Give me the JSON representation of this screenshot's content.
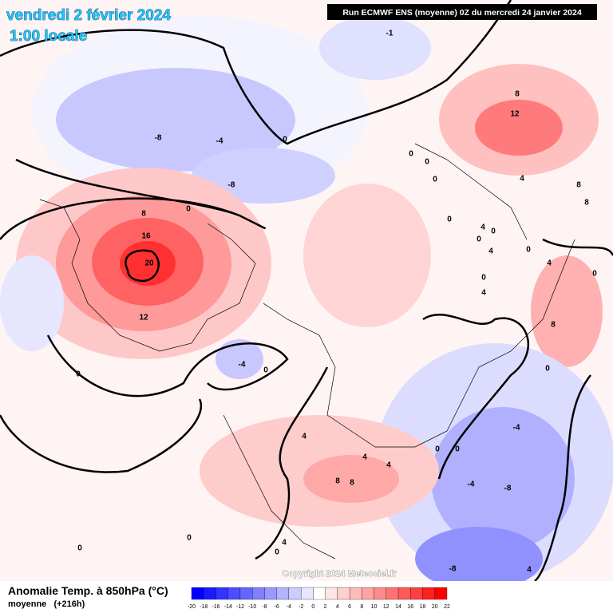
{
  "header": {
    "date": "vendredi 2 février 2024",
    "time": "1:00 locale",
    "run": "Run ECMWF ENS (moyenne) 0Z du mercredi 24 janvier 2024"
  },
  "copyright": "Copyright 2024 Meteociel.fr",
  "legend": {
    "title": "Anomalie Temp. à 850hPa (°C)",
    "subtitle": "moyenne   (+216h)",
    "ticks": [
      -20,
      -18,
      -16,
      -14,
      -12,
      -10,
      -8,
      -6,
      -4,
      -2,
      0,
      2,
      4,
      6,
      8,
      10,
      12,
      14,
      16,
      18,
      20,
      22
    ],
    "colors": [
      "#0000ff",
      "#1a1aff",
      "#3333ff",
      "#4d4dff",
      "#6666ff",
      "#7f7fff",
      "#9999ff",
      "#b3b3ff",
      "#ccccff",
      "#e6e6ff",
      "#ffffff",
      "#ffe6e6",
      "#ffd0d0",
      "#ffbaba",
      "#ffa3a3",
      "#ff8c8c",
      "#ff7373",
      "#ff5959",
      "#ff4040",
      "#ff2020",
      "#ff0000"
    ]
  },
  "contour_labels": [
    -1,
    -8,
    -4,
    0,
    -8,
    0,
    8,
    16,
    20,
    12,
    0,
    -4,
    0,
    8,
    12,
    0,
    0,
    0,
    4,
    8,
    8,
    0,
    4,
    0,
    0,
    4,
    0,
    4,
    0,
    0,
    4,
    8,
    0,
    4,
    -4,
    4,
    4,
    8,
    8,
    0,
    0,
    -4,
    -8,
    0,
    0,
    4,
    0,
    -8,
    4
  ]
}
